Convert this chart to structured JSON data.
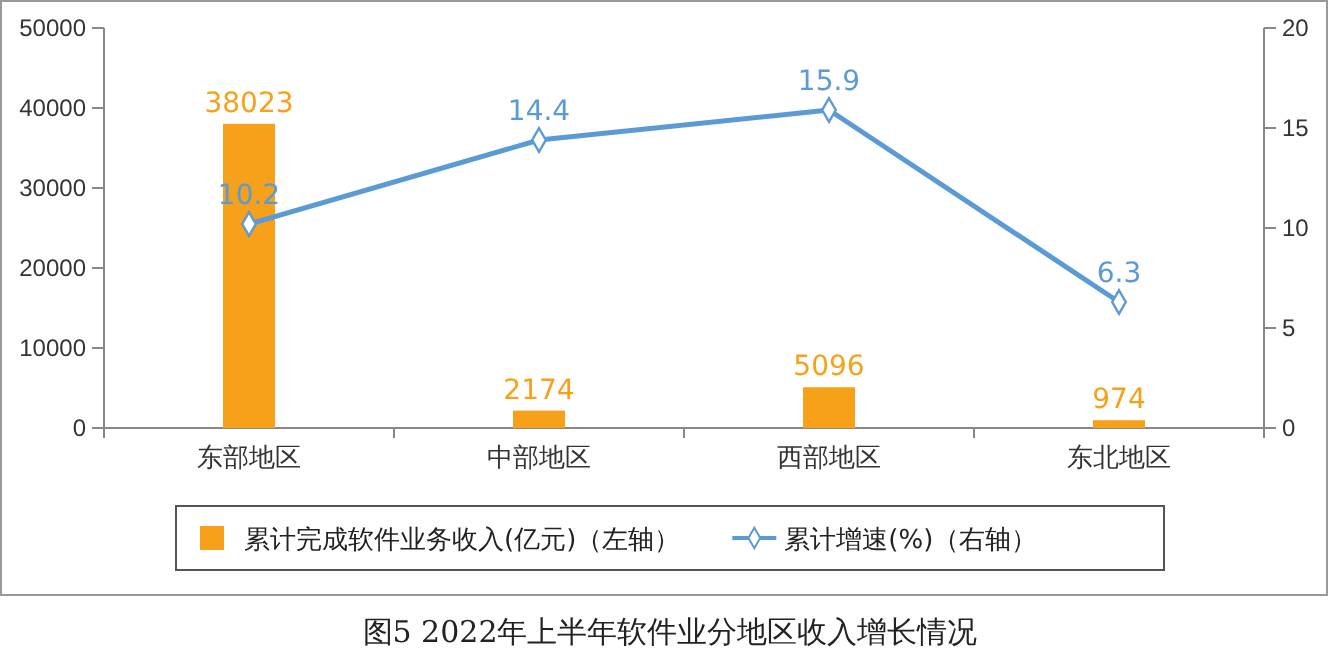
{
  "chart_data": {
    "type": "bar",
    "title": "图5 2022年上半年软件业分地区收入增长情况",
    "categories": [
      "东部地区",
      "中部地区",
      "西部地区",
      "东北地区"
    ],
    "series": [
      {
        "name": "累计完成软件业务收入(亿元)（左轴）",
        "color": "#f7a11a",
        "values": [
          38023,
          2174,
          5096,
          974
        ]
      },
      {
        "name": "累计增速(%)（右轴）",
        "type": "line",
        "axis": "y2",
        "color": "#5b9bd5",
        "values": [
          10.2,
          14.4,
          15.9,
          6.3
        ]
      }
    ],
    "ylim": [
      0,
      50000
    ],
    "yticks": [
      0,
      10000,
      20000,
      30000,
      40000,
      50000
    ],
    "y2lim": [
      0,
      20
    ],
    "y2ticks": [
      0,
      5,
      10,
      15,
      20
    ],
    "data_labels": true,
    "marker": "diamond",
    "legend": "bottom",
    "grid": false
  }
}
